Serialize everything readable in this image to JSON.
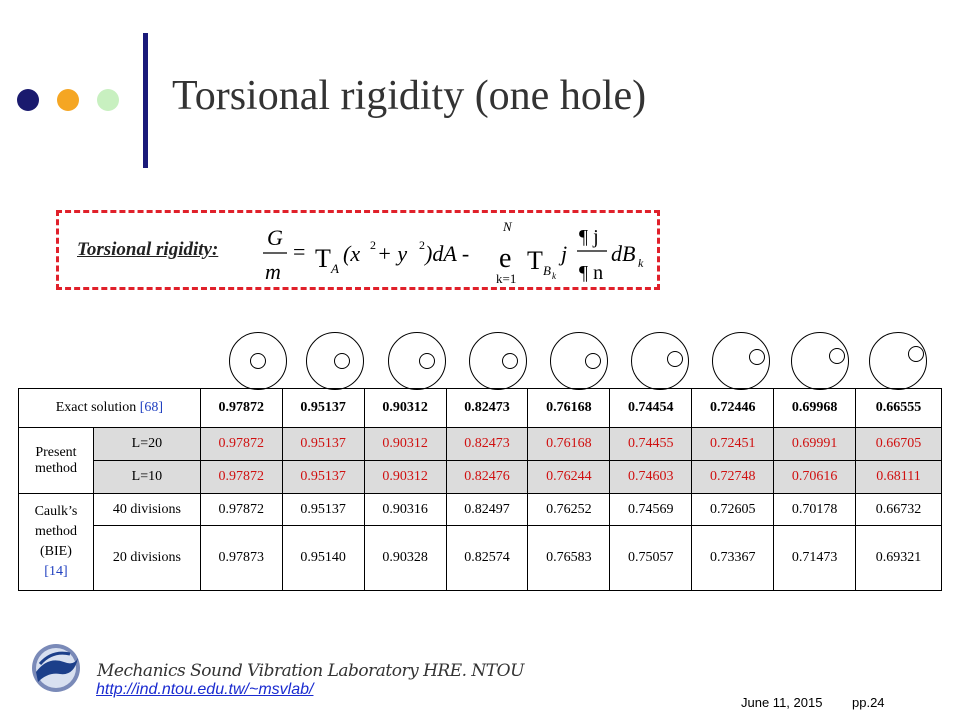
{
  "slide": {
    "title": "Torsional rigidity (one hole)",
    "accent_colors": {
      "dot1": "#1a1a6e",
      "dot2": "#f5a623",
      "dot3": "#c8f0c0",
      "bar": "#1a1a7a",
      "box_border": "#e0202a"
    }
  },
  "formula": {
    "label": "Torsional rigidity:",
    "lhs_num": "G",
    "lhs_den": "m",
    "eq": "=",
    "int1_sym": "T",
    "int1_sub": "A",
    "int1_body": "(x",
    "int1_mid": " + y",
    "int1_end": ")dA -",
    "sq": "2",
    "sum_sym": "e",
    "sum_top": "N",
    "sum_bot": "k=1",
    "int2_sym": "T",
    "int2_sub": "B",
    "int2_subsub": "k",
    "phi": "j",
    "frac_num": "¶ j",
    "frac_den": "¶ n",
    "dB": "dB",
    "dB_sub": "k"
  },
  "table": {
    "exact_label": "Exact solution",
    "exact_ref": "[68]",
    "exact": [
      "0.97872",
      "0.95137",
      "0.90312",
      "0.82473",
      "0.76168",
      "0.74454",
      "0.72446",
      "0.69968",
      "0.66555"
    ],
    "present_label": "Present method",
    "present_rows": [
      {
        "label": "L=20",
        "values": [
          "0.97872",
          "0.95137",
          "0.90312",
          "0.82473",
          "0.76168",
          "0.74455",
          "0.72451",
          "0.69991",
          "0.66705"
        ]
      },
      {
        "label": "L=10",
        "values": [
          "0.97872",
          "0.95137",
          "0.90312",
          "0.82476",
          "0.76244",
          "0.74603",
          "0.72748",
          "0.70616",
          "0.68111"
        ]
      }
    ],
    "caulk_label_line1": "Caulk’s",
    "caulk_label_line2": "method",
    "caulk_label_line3": "(BIE)",
    "caulk_ref": "[14]",
    "caulk_rows": [
      {
        "label": "40 divisions",
        "values": [
          "0.97872",
          "0.95137",
          "0.90316",
          "0.82497",
          "0.76252",
          "0.74569",
          "0.72605",
          "0.70178",
          "0.66732"
        ]
      },
      {
        "label": "20 divisions",
        "values": [
          "0.97873",
          "0.95140",
          "0.90328",
          "0.82574",
          "0.76583",
          "0.75057",
          "0.73367",
          "0.71473",
          "0.69321"
        ]
      }
    ]
  },
  "footer": {
    "lab_name": "Mechanics Sound Vibration Laboratory HRE. NTOU",
    "url": "http://ind.ntou.edu.tw/~msvlab/",
    "date": "June 11, 2015",
    "page": "pp.24"
  }
}
